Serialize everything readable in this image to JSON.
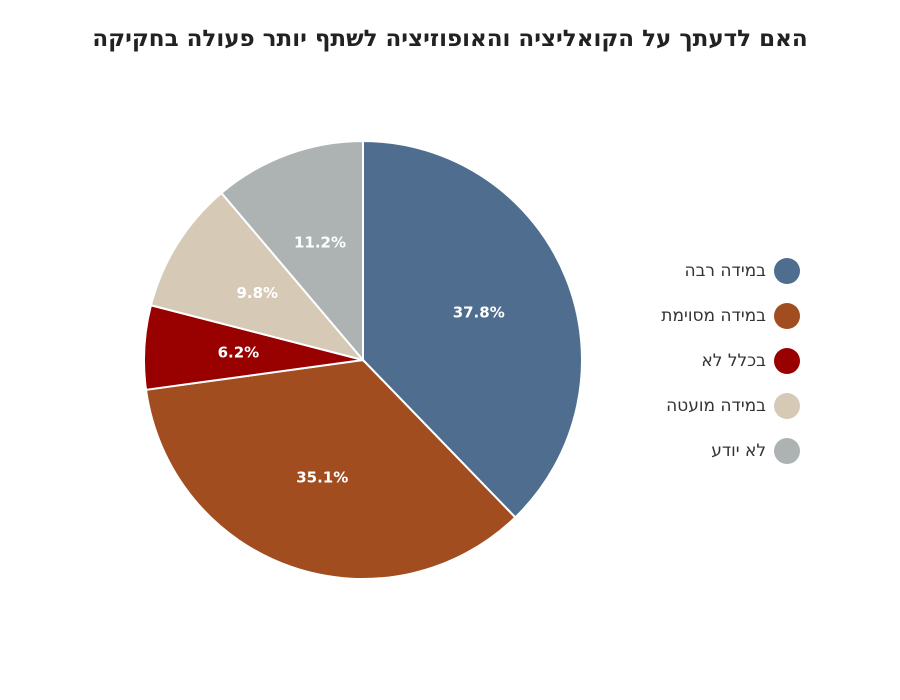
{
  "chart_data": {
    "type": "pie",
    "title": "האם לדעתך על הקואליציה והאופוזיציה לשתף יותר פעולה בחקיקה",
    "legend_position": "right",
    "slices": [
      {
        "label": "במידה רבה",
        "value": 37.8,
        "value_label": "37.8%",
        "color": "#4f6e8f"
      },
      {
        "label": "במידה מסוימת",
        "value": 35.1,
        "value_label": "35.1%",
        "color": "#a14d20"
      },
      {
        "label": "בכלל לא",
        "value": 6.2,
        "value_label": "6.2%",
        "color": "#990000"
      },
      {
        "label": "במידה מועטה",
        "value": 9.8,
        "value_label": "9.8%",
        "color": "#d6cab6"
      },
      {
        "label": "לא יודע",
        "value": 11.2,
        "value_label": "11.2%",
        "color": "#adb3b3"
      }
    ]
  }
}
